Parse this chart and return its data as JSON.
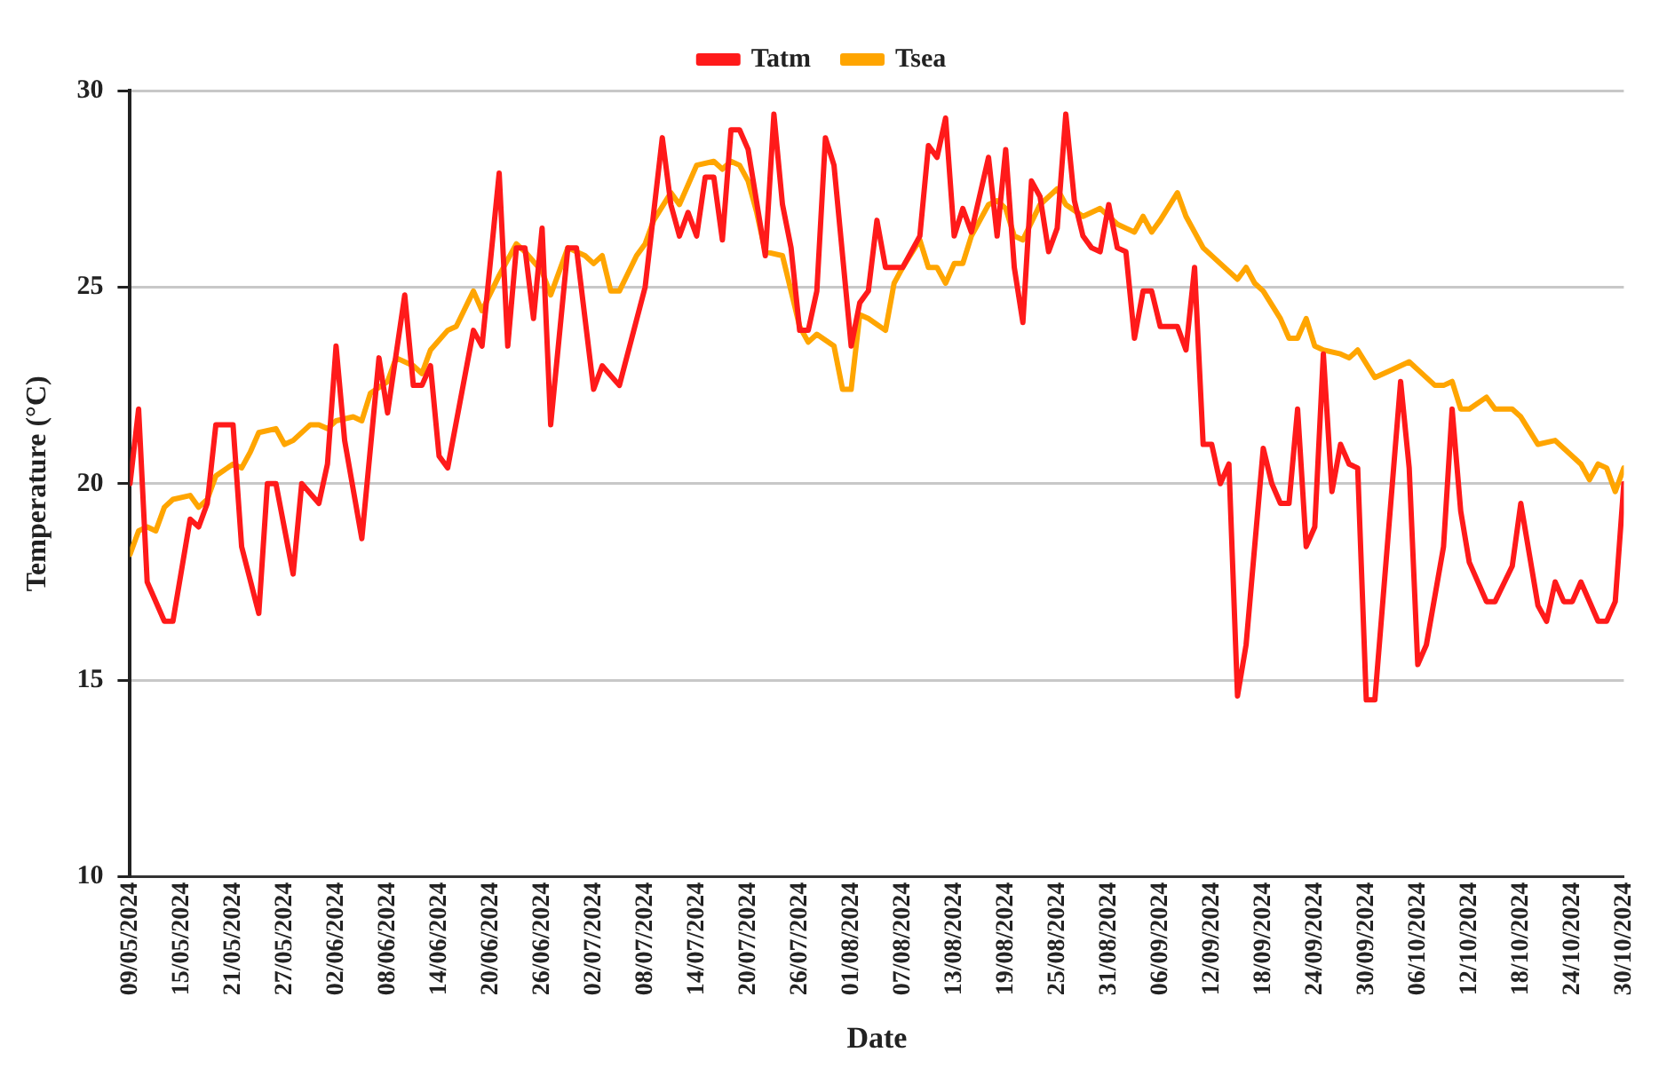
{
  "chart_data": {
    "type": "line",
    "xlabel": "Date",
    "ylabel": "Temperature (°C)",
    "legend": "top",
    "grid": "y",
    "marker": "none",
    "line_style": "solid",
    "xlim": [
      "2024-05-09",
      "2024-10-30"
    ],
    "ylim": [
      10,
      30
    ],
    "yticks": [
      10,
      15,
      20,
      25,
      30
    ],
    "xticks": [
      {
        "value": "2024-05-09",
        "label": "09/05/2024"
      },
      {
        "value": "2024-05-15",
        "label": "15/05/2024"
      },
      {
        "value": "2024-05-21",
        "label": "21/05/2024"
      },
      {
        "value": "2024-05-27",
        "label": "27/05/2024"
      },
      {
        "value": "2024-06-02",
        "label": "02/06/2024"
      },
      {
        "value": "2024-06-08",
        "label": "08/06/2024"
      },
      {
        "value": "2024-06-14",
        "label": "14/06/2024"
      },
      {
        "value": "2024-06-20",
        "label": "20/06/2024"
      },
      {
        "value": "2024-06-26",
        "label": "26/06/2024"
      },
      {
        "value": "2024-07-02",
        "label": "02/07/2024"
      },
      {
        "value": "2024-07-08",
        "label": "08/07/2024"
      },
      {
        "value": "2024-07-14",
        "label": "14/07/2024"
      },
      {
        "value": "2024-07-20",
        "label": "20/07/2024"
      },
      {
        "value": "2024-07-26",
        "label": "26/07/2024"
      },
      {
        "value": "2024-08-01",
        "label": "01/08/2024"
      },
      {
        "value": "2024-08-07",
        "label": "07/08/2024"
      },
      {
        "value": "2024-08-13",
        "label": "13/08/2024"
      },
      {
        "value": "2024-08-19",
        "label": "19/08/2024"
      },
      {
        "value": "2024-08-25",
        "label": "25/08/2024"
      },
      {
        "value": "2024-08-31",
        "label": "31/08/2024"
      },
      {
        "value": "2024-09-06",
        "label": "06/09/2024"
      },
      {
        "value": "2024-09-12",
        "label": "12/09/2024"
      },
      {
        "value": "2024-09-18",
        "label": "18/09/2024"
      },
      {
        "value": "2024-09-24",
        "label": "24/09/2024"
      },
      {
        "value": "2024-09-30",
        "label": "30/09/2024"
      },
      {
        "value": "2024-10-06",
        "label": "06/10/2024"
      },
      {
        "value": "2024-10-12",
        "label": "12/10/2024"
      },
      {
        "value": "2024-10-18",
        "label": "18/10/2024"
      },
      {
        "value": "2024-10-24",
        "label": "24/10/2024"
      },
      {
        "value": "2024-10-30",
        "label": "30/10/2024"
      }
    ],
    "series": [
      {
        "name": "Tatm",
        "color": "#ff1a1a",
        "x": [
          "2024-05-09",
          "2024-05-10",
          "2024-05-11",
          "2024-05-13",
          "2024-05-14",
          "2024-05-16",
          "2024-05-17",
          "2024-05-18",
          "2024-05-19",
          "2024-05-21",
          "2024-05-22",
          "2024-05-24",
          "2024-05-25",
          "2024-05-26",
          "2024-05-28",
          "2024-05-29",
          "2024-05-31",
          "2024-06-01",
          "2024-06-02",
          "2024-06-03",
          "2024-06-05",
          "2024-06-07",
          "2024-06-08",
          "2024-06-10",
          "2024-06-11",
          "2024-06-12",
          "2024-06-13",
          "2024-06-14",
          "2024-06-15",
          "2024-06-18",
          "2024-06-19",
          "2024-06-21",
          "2024-06-22",
          "2024-06-23",
          "2024-06-24",
          "2024-06-25",
          "2024-06-26",
          "2024-06-27",
          "2024-06-29",
          "2024-06-30",
          "2024-07-02",
          "2024-07-03",
          "2024-07-05",
          "2024-07-08",
          "2024-07-10",
          "2024-07-11",
          "2024-07-12",
          "2024-07-13",
          "2024-07-14",
          "2024-07-15",
          "2024-07-16",
          "2024-07-17",
          "2024-07-18",
          "2024-07-19",
          "2024-07-20",
          "2024-07-22",
          "2024-07-23",
          "2024-07-24",
          "2024-07-25",
          "2024-07-26",
          "2024-07-27",
          "2024-07-28",
          "2024-07-29",
          "2024-07-30",
          "2024-08-01",
          "2024-08-02",
          "2024-08-03",
          "2024-08-04",
          "2024-08-05",
          "2024-08-07",
          "2024-08-09",
          "2024-08-10",
          "2024-08-11",
          "2024-08-12",
          "2024-08-13",
          "2024-08-14",
          "2024-08-15",
          "2024-08-17",
          "2024-08-18",
          "2024-08-19",
          "2024-08-20",
          "2024-08-21",
          "2024-08-22",
          "2024-08-23",
          "2024-08-24",
          "2024-08-25",
          "2024-08-26",
          "2024-08-27",
          "2024-08-28",
          "2024-08-29",
          "2024-08-30",
          "2024-08-31",
          "2024-09-01",
          "2024-09-02",
          "2024-09-03",
          "2024-09-04",
          "2024-09-05",
          "2024-09-06",
          "2024-09-08",
          "2024-09-09",
          "2024-09-10",
          "2024-09-11",
          "2024-09-12",
          "2024-09-13",
          "2024-09-14",
          "2024-09-15",
          "2024-09-16",
          "2024-09-18",
          "2024-09-19",
          "2024-09-20",
          "2024-09-21",
          "2024-09-22",
          "2024-09-23",
          "2024-09-24",
          "2024-09-25",
          "2024-09-26",
          "2024-09-27",
          "2024-09-28",
          "2024-09-29",
          "2024-09-30",
          "2024-10-01",
          "2024-10-04",
          "2024-10-05",
          "2024-10-06",
          "2024-10-07",
          "2024-10-09",
          "2024-10-10",
          "2024-10-11",
          "2024-10-12",
          "2024-10-14",
          "2024-10-15",
          "2024-10-17",
          "2024-10-18",
          "2024-10-19",
          "2024-10-20",
          "2024-10-21",
          "2024-10-22",
          "2024-10-23",
          "2024-10-24",
          "2024-10-25",
          "2024-10-27",
          "2024-10-28",
          "2024-10-29",
          "2024-10-30"
        ],
        "values": [
          20.0,
          21.9,
          17.5,
          16.5,
          16.5,
          19.1,
          18.9,
          19.5,
          21.5,
          21.5,
          18.4,
          16.7,
          20.0,
          20.0,
          17.7,
          20.0,
          19.5,
          20.5,
          23.5,
          21.1,
          18.6,
          23.2,
          21.8,
          24.8,
          22.5,
          22.5,
          23.0,
          20.7,
          20.4,
          23.9,
          23.5,
          27.9,
          23.5,
          26.0,
          26.0,
          24.2,
          26.5,
          21.5,
          26.0,
          26.0,
          22.4,
          23.0,
          22.5,
          25.0,
          28.8,
          27.1,
          26.3,
          26.9,
          26.3,
          27.8,
          27.8,
          26.2,
          29.0,
          29.0,
          28.5,
          25.8,
          29.4,
          27.1,
          26.0,
          23.9,
          23.9,
          24.9,
          28.8,
          28.1,
          23.5,
          24.6,
          24.9,
          26.7,
          25.5,
          25.5,
          26.3,
          28.6,
          28.3,
          29.3,
          26.3,
          27.0,
          26.4,
          28.3,
          26.3,
          28.5,
          25.5,
          24.1,
          27.7,
          27.3,
          25.9,
          26.5,
          29.4,
          27.2,
          26.3,
          26.0,
          25.9,
          27.1,
          26.0,
          25.9,
          23.7,
          24.9,
          24.9,
          24.0,
          24.0,
          23.4,
          25.5,
          21.0,
          21.0,
          20.0,
          20.5,
          14.6,
          15.9,
          20.9,
          20.0,
          19.5,
          19.5,
          21.9,
          18.4,
          18.9,
          23.3,
          19.8,
          21.0,
          20.5,
          20.4,
          14.5,
          14.5,
          22.6,
          20.4,
          15.4,
          15.9,
          18.4,
          21.9,
          19.3,
          18.0,
          17.0,
          17.0,
          17.9,
          19.5,
          18.2,
          16.9,
          16.5,
          17.5,
          17.0,
          17.0,
          17.5,
          16.5,
          16.5,
          17.0,
          20.0
        ]
      },
      {
        "name": "Tsea",
        "color": "#ffa500",
        "x": [
          "2024-05-09",
          "2024-05-10",
          "2024-05-11",
          "2024-05-12",
          "2024-05-13",
          "2024-05-14",
          "2024-05-16",
          "2024-05-17",
          "2024-05-18",
          "2024-05-19",
          "2024-05-21",
          "2024-05-22",
          "2024-05-23",
          "2024-05-24",
          "2024-05-26",
          "2024-05-27",
          "2024-05-28",
          "2024-05-30",
          "2024-05-31",
          "2024-06-01",
          "2024-06-02",
          "2024-06-04",
          "2024-06-05",
          "2024-06-06",
          "2024-06-08",
          "2024-06-09",
          "2024-06-11",
          "2024-06-12",
          "2024-06-13",
          "2024-06-15",
          "2024-06-16",
          "2024-06-18",
          "2024-06-19",
          "2024-06-21",
          "2024-06-23",
          "2024-06-24",
          "2024-06-26",
          "2024-06-27",
          "2024-06-29",
          "2024-07-01",
          "2024-07-02",
          "2024-07-03",
          "2024-07-04",
          "2024-07-05",
          "2024-07-07",
          "2024-07-08",
          "2024-07-09",
          "2024-07-11",
          "2024-07-12",
          "2024-07-13",
          "2024-07-14",
          "2024-07-16",
          "2024-07-17",
          "2024-07-18",
          "2024-07-19",
          "2024-07-20",
          "2024-07-21",
          "2024-07-22",
          "2024-07-24",
          "2024-07-25",
          "2024-07-26",
          "2024-07-27",
          "2024-07-28",
          "2024-07-30",
          "2024-07-31",
          "2024-08-01",
          "2024-08-02",
          "2024-08-03",
          "2024-08-05",
          "2024-08-06",
          "2024-08-07",
          "2024-08-09",
          "2024-08-10",
          "2024-08-11",
          "2024-08-12",
          "2024-08-13",
          "2024-08-14",
          "2024-08-15",
          "2024-08-17",
          "2024-08-18",
          "2024-08-19",
          "2024-08-20",
          "2024-08-21",
          "2024-08-23",
          "2024-08-25",
          "2024-08-26",
          "2024-08-28",
          "2024-08-30",
          "2024-09-01",
          "2024-09-03",
          "2024-09-04",
          "2024-09-05",
          "2024-09-06",
          "2024-09-08",
          "2024-09-09",
          "2024-09-11",
          "2024-09-13",
          "2024-09-15",
          "2024-09-16",
          "2024-09-17",
          "2024-09-18",
          "2024-09-20",
          "2024-09-21",
          "2024-09-22",
          "2024-09-23",
          "2024-09-24",
          "2024-09-25",
          "2024-09-27",
          "2024-09-28",
          "2024-09-29",
          "2024-10-01",
          "2024-10-03",
          "2024-10-05",
          "2024-10-06",
          "2024-10-08",
          "2024-10-09",
          "2024-10-10",
          "2024-10-11",
          "2024-10-12",
          "2024-10-14",
          "2024-10-15",
          "2024-10-17",
          "2024-10-18",
          "2024-10-20",
          "2024-10-22",
          "2024-10-23",
          "2024-10-25",
          "2024-10-26",
          "2024-10-27",
          "2024-10-28",
          "2024-10-29",
          "2024-10-30"
        ],
        "values": [
          18.2,
          18.8,
          18.9,
          18.8,
          19.4,
          19.6,
          19.7,
          19.4,
          19.6,
          20.2,
          20.5,
          20.4,
          20.8,
          21.3,
          21.4,
          21.0,
          21.1,
          21.5,
          21.5,
          21.4,
          21.6,
          21.7,
          21.6,
          22.3,
          22.6,
          23.2,
          23.0,
          22.8,
          23.4,
          23.9,
          24.0,
          24.9,
          24.4,
          25.3,
          26.1,
          25.9,
          25.4,
          24.8,
          26.0,
          25.8,
          25.6,
          25.8,
          24.9,
          24.9,
          25.8,
          26.1,
          26.7,
          27.4,
          27.1,
          27.6,
          28.1,
          28.2,
          28.0,
          28.2,
          28.1,
          27.7,
          26.9,
          25.9,
          25.8,
          24.9,
          24.0,
          23.6,
          23.8,
          23.5,
          22.4,
          22.4,
          24.3,
          24.2,
          23.9,
          25.1,
          25.5,
          26.2,
          25.5,
          25.5,
          25.1,
          25.6,
          25.6,
          26.3,
          27.1,
          27.2,
          27.0,
          26.3,
          26.2,
          27.1,
          27.5,
          27.1,
          26.8,
          27.0,
          26.6,
          26.4,
          26.8,
          26.4,
          26.7,
          27.4,
          26.8,
          26.0,
          25.6,
          25.2,
          25.5,
          25.1,
          24.9,
          24.2,
          23.7,
          23.7,
          24.2,
          23.5,
          23.4,
          23.3,
          23.2,
          23.4,
          22.7,
          22.9,
          23.1,
          22.9,
          22.5,
          22.5,
          22.6,
          21.9,
          21.9,
          22.2,
          21.9,
          21.9,
          21.7,
          21.0,
          21.1,
          20.9,
          20.5,
          20.1,
          20.5,
          20.4,
          19.8,
          20.4
        ]
      }
    ]
  }
}
